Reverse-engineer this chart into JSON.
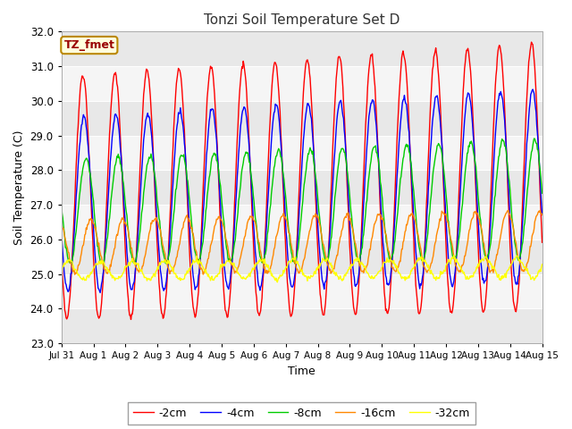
{
  "title": "Tonzi Soil Temperature Set D",
  "xlabel": "Time",
  "ylabel": "Soil Temperature (C)",
  "ylim": [
    23.0,
    32.0
  ],
  "yticks": [
    23.0,
    24.0,
    25.0,
    26.0,
    27.0,
    28.0,
    29.0,
    30.0,
    31.0,
    32.0
  ],
  "xtick_labels": [
    "Jul 31",
    "Aug 1",
    "Aug 2",
    "Aug 3",
    "Aug 4",
    "Aug 5",
    "Aug 6",
    "Aug 7",
    "Aug 8",
    "Aug 9",
    "Aug 10",
    "Aug 11",
    "Aug 12",
    "Aug 13",
    "Aug 14",
    "Aug 15"
  ],
  "series_colors": [
    "#ff0000",
    "#0000ff",
    "#00cc00",
    "#ff8800",
    "#ffff00"
  ],
  "series_labels": [
    "-2cm",
    "-4cm",
    "-8cm",
    "-16cm",
    "-32cm"
  ],
  "annotation_text": "TZ_fmet",
  "annotation_bg": "#ffffdd",
  "annotation_edge": "#bb8800",
  "annotation_text_color": "#990000",
  "plot_bg_color": "#e8e8e8",
  "plot_bg_color2": "#f5f5f5",
  "fig_bg_color": "#ffffff",
  "line_width": 1.0,
  "n_points": 720,
  "start_day": 0,
  "end_day": 15,
  "amplitudes": [
    3.5,
    2.5,
    1.5,
    0.75,
    0.25
  ],
  "mean_temps": [
    27.2,
    27.0,
    26.8,
    25.8,
    25.1
  ],
  "phase_shifts": [
    0.0,
    0.03,
    0.1,
    0.25,
    0.55
  ],
  "amp_growth": [
    0.025,
    0.02,
    0.015,
    0.008,
    0.003
  ],
  "mean_trend": [
    0.04,
    0.035,
    0.025,
    0.01,
    0.005
  ]
}
